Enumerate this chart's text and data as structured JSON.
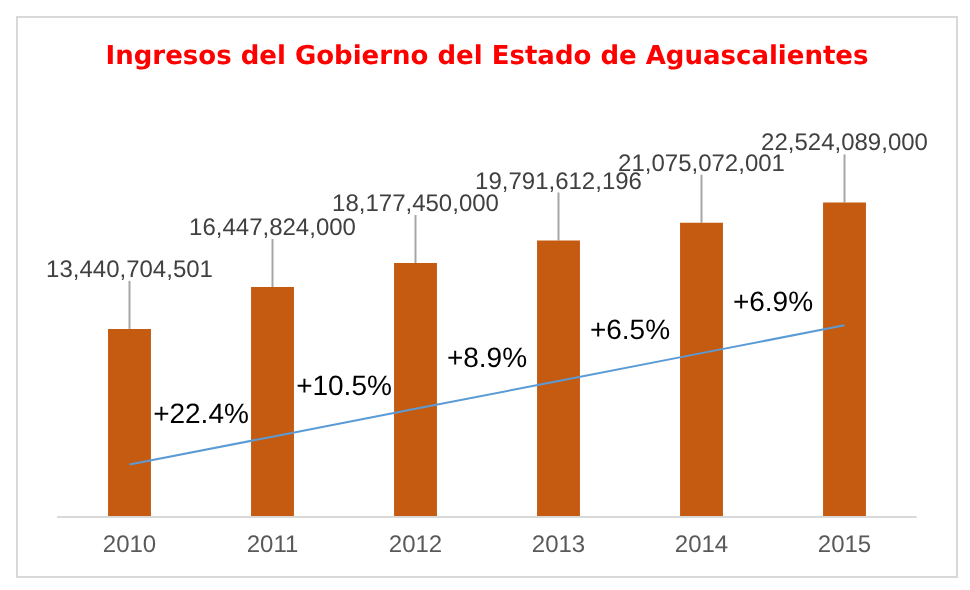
{
  "chart_data": {
    "type": "bar",
    "title": "Ingresos del Gobierno del Estado de Aguascalientes",
    "categories": [
      "2010",
      "2011",
      "2012",
      "2013",
      "2014",
      "2015"
    ],
    "series": [
      {
        "color": "#c55a11",
        "values": [
          13440704501,
          16447824000,
          18177450000,
          19791612196,
          21075072001,
          22524089000
        ],
        "value_labels": [
          "13,440,704,501",
          "16,447,824,000",
          "18,177,450,000",
          "19,791,612,196",
          "21,075,072,001",
          "22,524,089,000"
        ]
      },
      {
        "type": "line",
        "color": "#5b9bd5",
        "values": [
          3700000000,
          5700000000,
          7700000000,
          9700000000,
          11700000000,
          13700000000
        ]
      }
    ],
    "annotations": [
      "+22.4%",
      "+10.5%",
      "+8.9%",
      "+6.5%",
      "+6.9%"
    ],
    "marker": "none",
    "tick_labels": "x"
  }
}
